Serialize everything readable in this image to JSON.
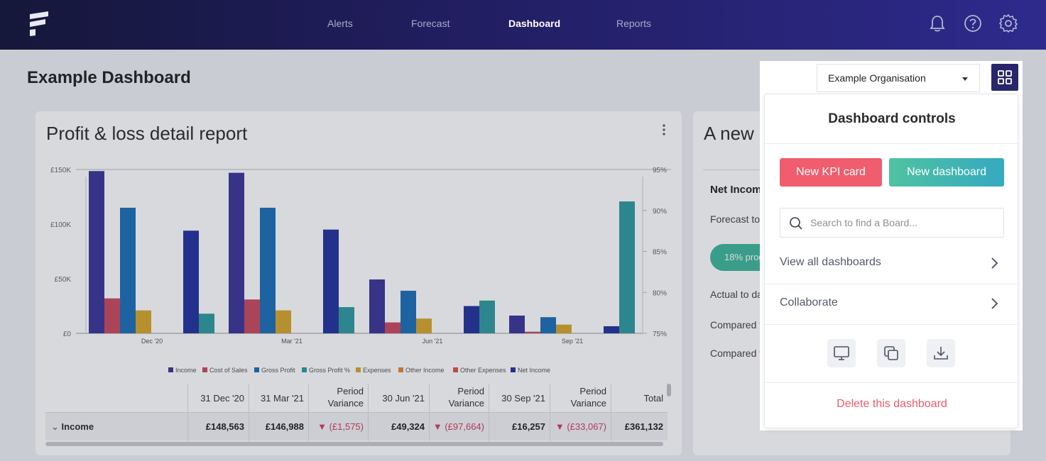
{
  "nav": {
    "links": [
      "Alerts",
      "Forecast",
      "Dashboard",
      "Reports"
    ],
    "active": "Dashboard",
    "icons": [
      "bell-icon",
      "help-icon",
      "settings-icon"
    ]
  },
  "page": {
    "title": "Example Dashboard"
  },
  "card1": {
    "title": "Profit & loss detail report",
    "table": {
      "headers": [
        [
          "31 Dec '20"
        ],
        [
          "31 Mar '21"
        ],
        [
          "Period",
          "Variance"
        ],
        [
          "30 Jun '21"
        ],
        [
          "Period",
          "Variance"
        ],
        [
          "30 Sep '21"
        ],
        [
          "Period",
          "Variance"
        ],
        [
          "Total"
        ]
      ],
      "row": {
        "label": "Income",
        "cells": [
          "£148,563",
          "£146,988",
          "▼ (£1,575)",
          "£49,324",
          "▼ (£97,664)",
          "£16,257",
          "▼ (£33,067)",
          "£361,132"
        ]
      }
    }
  },
  "card2": {
    "title": "A new p",
    "subtitle": "Net Incom",
    "lines": [
      "Forecast to",
      "Actual to da",
      "Compared t",
      "Compared t"
    ],
    "pill": "18% prog"
  },
  "panel": {
    "org": "Example Organisation",
    "title": "Dashboard controls",
    "new_kpi": "New KPI card",
    "new_dashboard": "New dashboard",
    "search_placeholder": "Search to find a Board...",
    "menu": [
      "View all dashboards",
      "Collaborate"
    ],
    "actions": [
      "monitor-icon",
      "copy-icon",
      "download-icon"
    ],
    "delete": "Delete this dashboard"
  },
  "colors": {
    "income": "#3b3598",
    "cost_of_sales": "#c94a5e",
    "gross_profit": "#1c6fb8",
    "gross_profit_pct": "#2f9aa0",
    "expenses": "#d6a62c",
    "other_income": "#e7843a",
    "other_expenses": "#d45a4a",
    "net_income": "#23329e"
  },
  "chart_data": {
    "type": "bar",
    "categories": [
      "Dec '20",
      "Mar '21",
      "Jun '21",
      "Sep '21"
    ],
    "series": [
      {
        "name": "Income",
        "values": [
          148563,
          146988,
          49324,
          16257
        ],
        "color": "#3b3598"
      },
      {
        "name": "Cost of Sales",
        "values": [
          32000,
          31000,
          10000,
          1500
        ],
        "color": "#c94a5e"
      },
      {
        "name": "Gross Profit",
        "values": [
          115000,
          115000,
          39000,
          14800
        ],
        "color": "#1c6fb8"
      },
      {
        "name": "Expenses",
        "values": [
          21000,
          21000,
          13500,
          8000
        ],
        "color": "#d6a62c"
      },
      {
        "name": "Net Income",
        "values": [
          94000,
          95000,
          25000,
          6500
        ],
        "color": "#23329e"
      }
    ],
    "secondary_series": {
      "name": "Gross Profit %",
      "values": [
        77.4,
        78.2,
        79.0,
        91.1
      ],
      "color": "#2f9aa0",
      "ylim": [
        75,
        95
      ]
    },
    "legend": [
      "Income",
      "Cost of Sales",
      "Gross Profit",
      "Gross Profit %",
      "Expenses",
      "Other Income",
      "Other Expenses",
      "Net Income"
    ],
    "ylim": [
      0,
      150000
    ],
    "yticks": [
      "£0",
      "£50K",
      "£100K",
      "£150K"
    ],
    "y2ticks": [
      "75%",
      "80%",
      "85%",
      "90%",
      "95%"
    ]
  }
}
